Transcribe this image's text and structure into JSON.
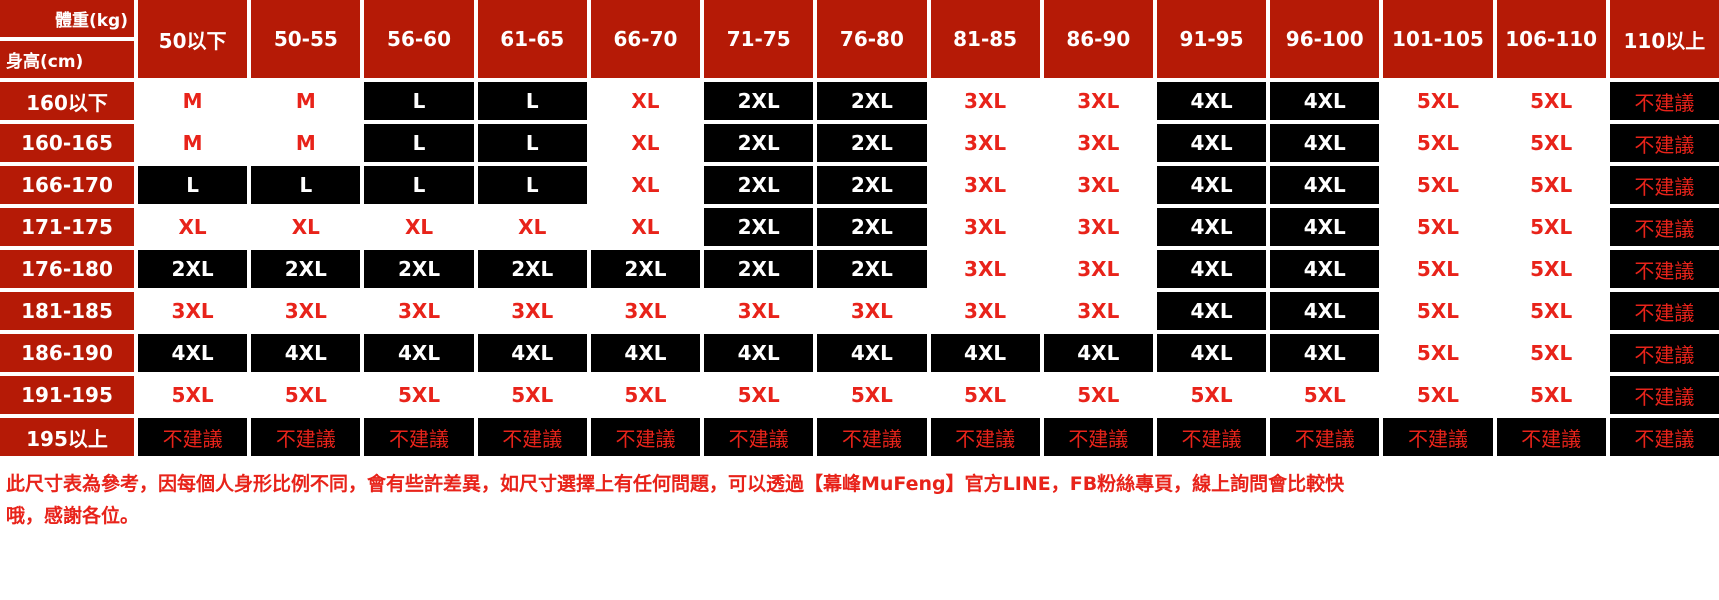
{
  "corner": {
    "weight_label": "體重(kg)",
    "height_label": "身高(cm)"
  },
  "weights": [
    "50以下",
    "50-55",
    "56-60",
    "61-65",
    "66-70",
    "71-75",
    "76-80",
    "81-85",
    "86-90",
    "91-95",
    "96-100",
    "101-105",
    "106-110",
    "110以上"
  ],
  "rows": [
    {
      "height": "160以下",
      "sizes": [
        "M",
        "M",
        "L",
        "L",
        "XL",
        "2XL",
        "2XL",
        "3XL",
        "3XL",
        "4XL",
        "4XL",
        "5XL",
        "5XL",
        "不建議"
      ]
    },
    {
      "height": "160-165",
      "sizes": [
        "M",
        "M",
        "L",
        "L",
        "XL",
        "2XL",
        "2XL",
        "3XL",
        "3XL",
        "4XL",
        "4XL",
        "5XL",
        "5XL",
        "不建議"
      ]
    },
    {
      "height": "166-170",
      "sizes": [
        "L",
        "L",
        "L",
        "L",
        "XL",
        "2XL",
        "2XL",
        "3XL",
        "3XL",
        "4XL",
        "4XL",
        "5XL",
        "5XL",
        "不建議"
      ]
    },
    {
      "height": "171-175",
      "sizes": [
        "XL",
        "XL",
        "XL",
        "XL",
        "XL",
        "2XL",
        "2XL",
        "3XL",
        "3XL",
        "4XL",
        "4XL",
        "5XL",
        "5XL",
        "不建議"
      ]
    },
    {
      "height": "176-180",
      "sizes": [
        "2XL",
        "2XL",
        "2XL",
        "2XL",
        "2XL",
        "2XL",
        "2XL",
        "3XL",
        "3XL",
        "4XL",
        "4XL",
        "5XL",
        "5XL",
        "不建議"
      ]
    },
    {
      "height": "181-185",
      "sizes": [
        "3XL",
        "3XL",
        "3XL",
        "3XL",
        "3XL",
        "3XL",
        "3XL",
        "3XL",
        "3XL",
        "4XL",
        "4XL",
        "5XL",
        "5XL",
        "不建議"
      ]
    },
    {
      "height": "186-190",
      "sizes": [
        "4XL",
        "4XL",
        "4XL",
        "4XL",
        "4XL",
        "4XL",
        "4XL",
        "4XL",
        "4XL",
        "4XL",
        "4XL",
        "5XL",
        "5XL",
        "不建議"
      ]
    },
    {
      "height": "191-195",
      "sizes": [
        "5XL",
        "5XL",
        "5XL",
        "5XL",
        "5XL",
        "5XL",
        "5XL",
        "5XL",
        "5XL",
        "5XL",
        "5XL",
        "5XL",
        "5XL",
        "不建議"
      ]
    },
    {
      "height": "195以上",
      "sizes": [
        "不建議",
        "不建議",
        "不建議",
        "不建議",
        "不建議",
        "不建議",
        "不建議",
        "不建議",
        "不建議",
        "不建議",
        "不建議",
        "不建議",
        "不建議",
        "不建議"
      ]
    }
  ],
  "cell_styles": {
    "M": "light",
    "L": "dark",
    "XL": "light",
    "2XL": "dark",
    "3XL": "light",
    "4XL": "dark",
    "5XL": "light",
    "不建議": "na"
  },
  "colors": {
    "header_red": "#b51a06",
    "text_red": "#e8231a",
    "dark": "#000000"
  },
  "note": {
    "line1": "此尺寸表為參考，因每個人身形比例不同，會有些許差異，如尺寸選擇上有任何問題，可以透過【幕峰MuFeng】官方LINE，FB粉絲專頁，線上詢問會比較快",
    "line2": "哦，感謝各位。"
  }
}
